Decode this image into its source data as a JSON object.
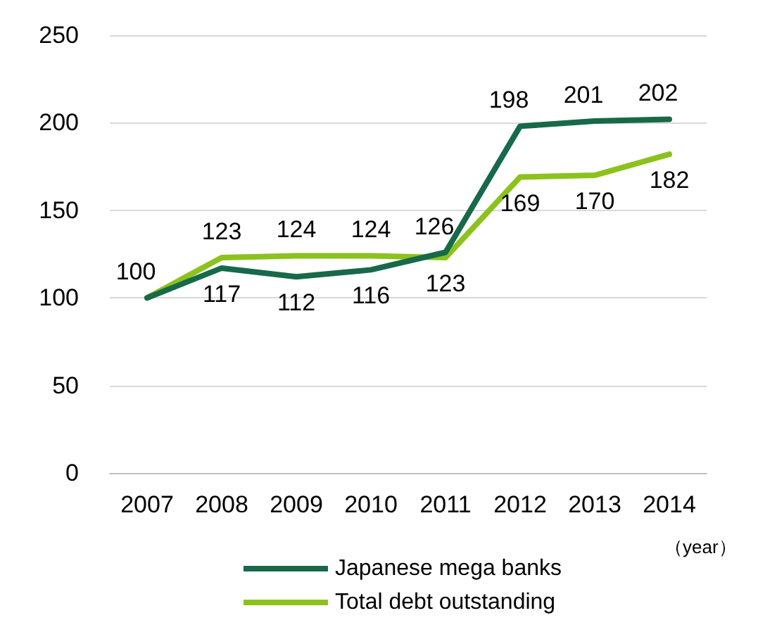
{
  "chart_data": {
    "type": "line",
    "xlabel": "（year）",
    "categories": [
      "2007",
      "2008",
      "2009",
      "2010",
      "2011",
      "2012",
      "2013",
      "2014"
    ],
    "series": [
      {
        "name": "Japanese mega banks",
        "color": "#17694a",
        "values": [
          100,
          117,
          112,
          116,
          126,
          198,
          201,
          202
        ],
        "value_labels": [
          "100",
          "117",
          "112",
          "116",
          "126",
          "198",
          "201",
          "202"
        ]
      },
      {
        "name": "Total debt outstanding",
        "color": "#8cc21e",
        "values": [
          100,
          123,
          124,
          124,
          123,
          169,
          170,
          182
        ],
        "value_labels": [
          null,
          "123",
          "124",
          "124",
          "123",
          "169",
          "170",
          "182"
        ]
      }
    ],
    "ylim": [
      0,
      250
    ],
    "yticks": [
      0,
      50,
      100,
      150,
      200,
      250
    ],
    "grid": "y",
    "legend": "bottom",
    "marker": "none",
    "line_style": "solid"
  }
}
